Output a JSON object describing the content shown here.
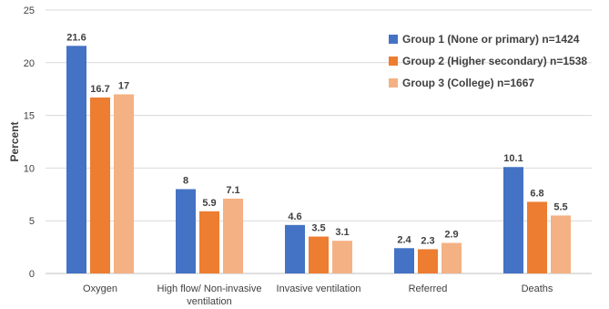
{
  "chart_data": {
    "type": "bar",
    "title": "",
    "xlabel": "",
    "ylabel": "Percent",
    "ylim": [
      0,
      25
    ],
    "yticks": [
      0,
      5,
      10,
      15,
      20,
      25
    ],
    "grid": true,
    "legend_position": "top-right",
    "categories": [
      [
        "Oxygen"
      ],
      [
        "High flow/ Non-invasive",
        "ventilation"
      ],
      [
        "Invasive ventilation"
      ],
      [
        "Referred"
      ],
      [
        "Deaths"
      ]
    ],
    "series": [
      {
        "name": "Group 1 (None or primary) n=1424",
        "color": "#4472C4",
        "values": [
          21.6,
          8,
          4.6,
          2.4,
          10.1
        ]
      },
      {
        "name": "Group 2 (Higher secondary) n=1538",
        "color": "#ED7D31",
        "values": [
          16.7,
          5.9,
          3.5,
          2.3,
          6.8
        ]
      },
      {
        "name": "Group 3 (College) n=1667",
        "color": "#F4B183",
        "values": [
          17,
          7.1,
          3.1,
          2.9,
          5.5
        ]
      }
    ]
  }
}
